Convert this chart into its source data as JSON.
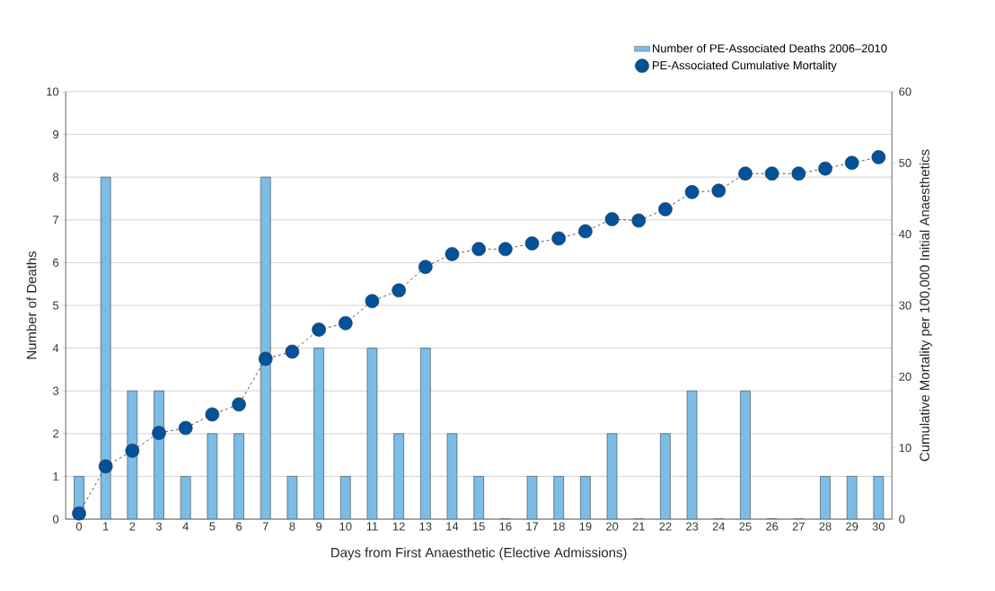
{
  "chart_data": {
    "type": "bar",
    "xlabel": "Days from First Anaesthetic (Elective Admissions)",
    "ylabel": "Number of Deaths",
    "y2label": "Cumulative Mortality per 100,000 Initial Anaesthetics",
    "categories": [
      "0",
      "1",
      "2",
      "3",
      "4",
      "5",
      "6",
      "7",
      "8",
      "9",
      "10",
      "11",
      "12",
      "13",
      "14",
      "15",
      "16",
      "17",
      "18",
      "19",
      "20",
      "21",
      "22",
      "23",
      "24",
      "25",
      "26",
      "27",
      "28",
      "29",
      "30"
    ],
    "series": [
      {
        "name": "Number of PE-Associated Deaths 2006–2010",
        "color": "#7bbde6",
        "values": [
          1,
          8,
          3,
          3,
          1,
          2,
          2,
          8,
          1,
          4,
          1,
          4,
          2,
          4,
          2,
          1,
          0,
          1,
          1,
          1,
          2,
          0,
          2,
          3,
          0,
          3,
          0,
          0,
          1,
          1,
          1
        ]
      },
      {
        "name": "PE-Associated Cumulative Mortality",
        "type": "line",
        "axis": "y2",
        "color": "#00529b",
        "marker": "circle",
        "line_style": "dashed",
        "values": [
          0.8,
          7.4,
          9.6,
          12.1,
          12.8,
          14.7,
          16.1,
          22.5,
          23.5,
          26.6,
          27.5,
          30.6,
          32.1,
          35.4,
          37.2,
          37.9,
          37.9,
          38.7,
          39.4,
          40.4,
          42.1,
          41.9,
          43.5,
          45.9,
          46.1,
          48.5,
          48.5,
          48.5,
          49.2,
          50.0,
          50.8
        ]
      }
    ],
    "ylim": [
      0,
      10
    ],
    "yticks": [
      0,
      1,
      2,
      3,
      4,
      5,
      6,
      7,
      8,
      9,
      10
    ],
    "y2lim": [
      0,
      60
    ],
    "y2ticks": [
      0,
      10,
      20,
      30,
      40,
      50,
      60
    ],
    "grid": "y",
    "legend": "top right"
  }
}
